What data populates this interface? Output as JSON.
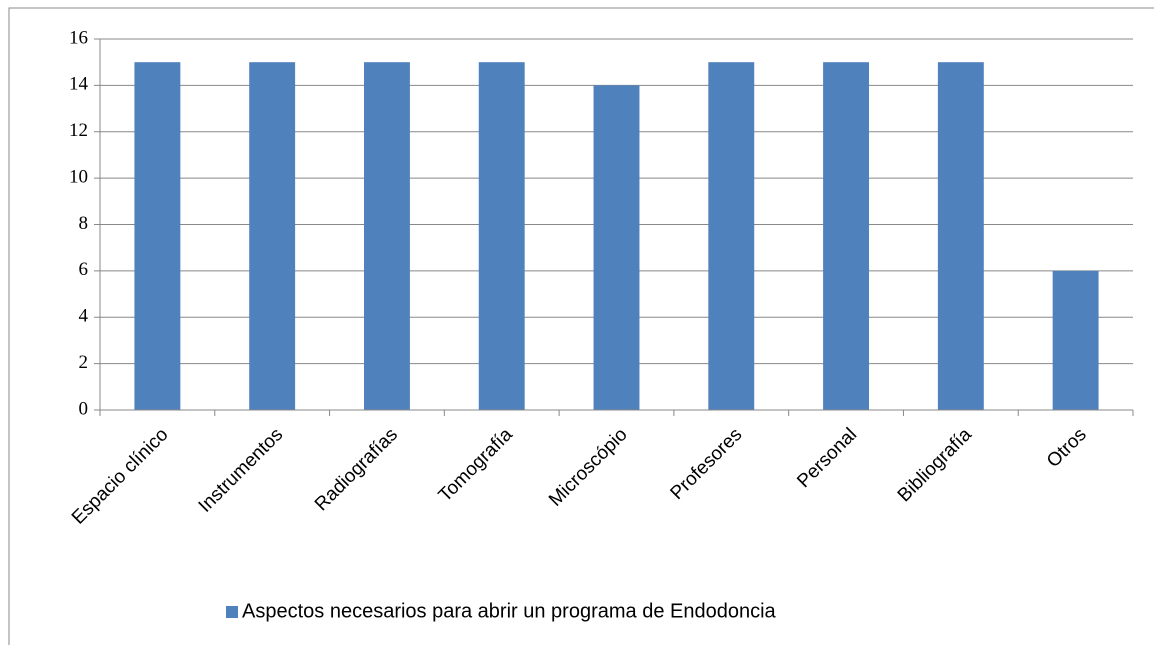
{
  "chart_data": {
    "type": "bar",
    "categories": [
      "Espacio clínico",
      "Instrumentos",
      "Radiografías",
      "Tomografía",
      "Microscópio",
      "Profesores",
      "Personal",
      "Bibliografía",
      "Otros"
    ],
    "series": [
      {
        "name": "Aspectos necesarios para abrir un programa de Endodoncia",
        "color": "#4f81bd",
        "values": [
          15,
          15,
          15,
          15,
          14,
          15,
          15,
          15,
          6
        ]
      }
    ],
    "ylim": [
      0,
      16
    ],
    "yticks": [
      0,
      2,
      4,
      6,
      8,
      10,
      12,
      14,
      16
    ],
    "grid": true,
    "legend": "bottom"
  }
}
